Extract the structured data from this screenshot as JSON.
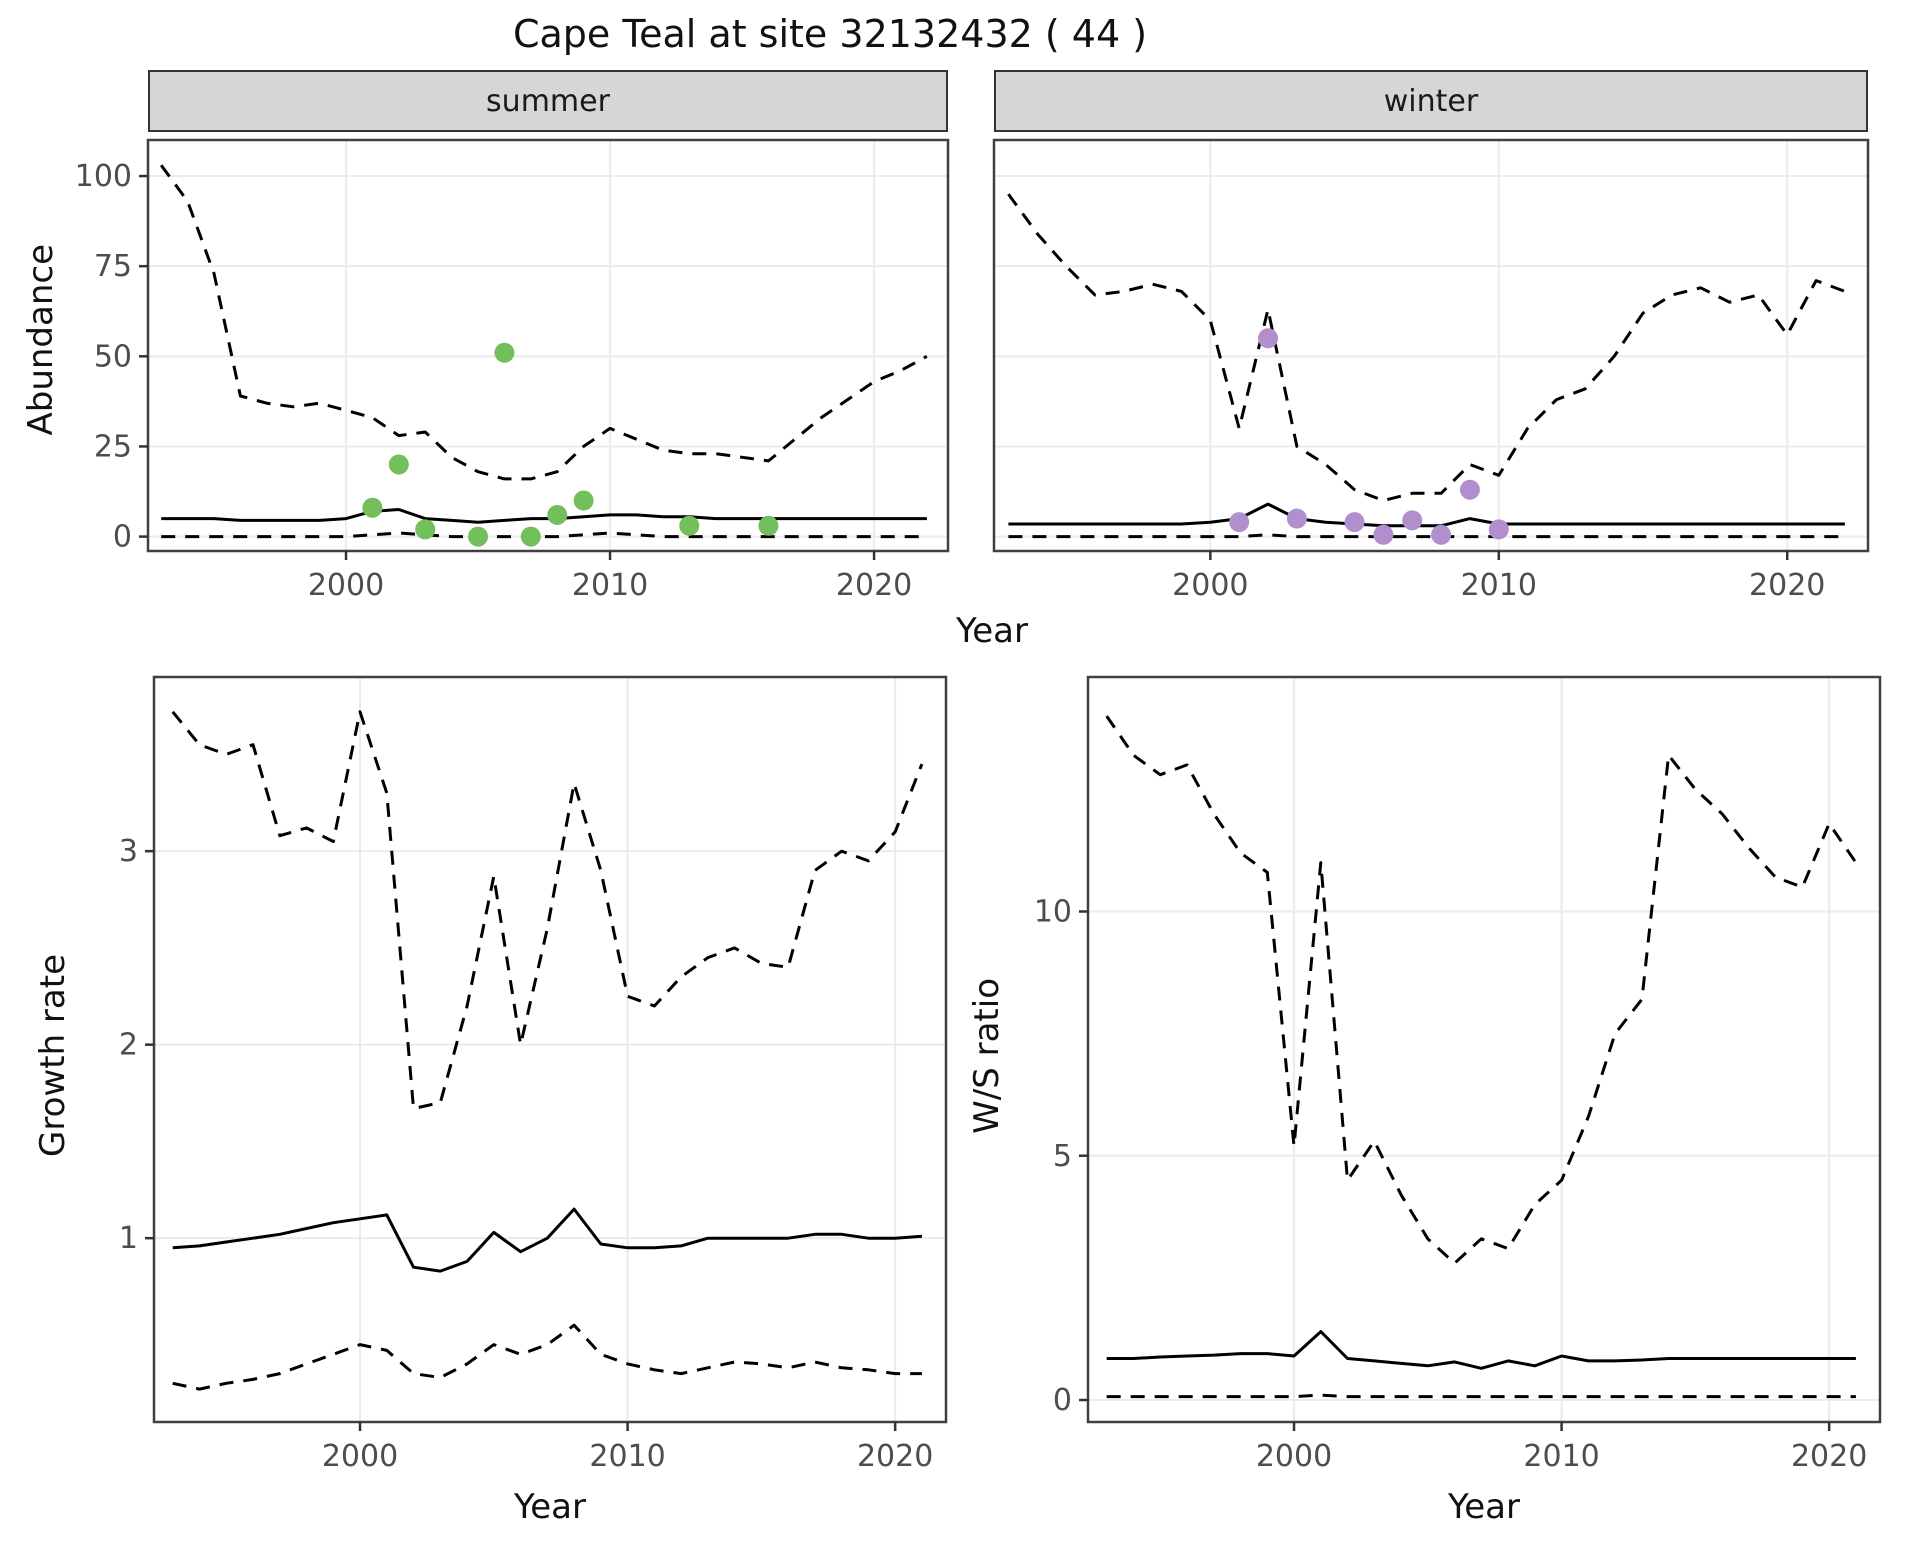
{
  "title": "Cape Teal at site 32132432 ( 44 )",
  "facets": {
    "summer": "summer",
    "winter": "winter"
  },
  "axes": {
    "abundance_label": "Abundance",
    "year_label": "Year",
    "growth_label": "Growth rate",
    "ws_label": "W/S ratio"
  },
  "colors": {
    "line": "#000000",
    "summer_points": "#72bf5b",
    "winter_points": "#b18fce",
    "strip_bg": "#d6d6d6",
    "grid": "#ebebeb",
    "panel_border": "#404040"
  },
  "chart_data": [
    {
      "type": "line",
      "name": "abundance-summer",
      "facet": "summer",
      "xlabel": "Year",
      "ylabel": "Abundance",
      "xlim": [
        1992.5,
        2022.8
      ],
      "ylim": [
        -4,
        110
      ],
      "xticks": [
        2000,
        2010,
        2020
      ],
      "yticks": [
        0,
        25,
        50,
        75,
        100
      ],
      "x": [
        1993,
        1994,
        1995,
        1996,
        1997,
        1998,
        1999,
        2000,
        2001,
        2002,
        2003,
        2004,
        2005,
        2006,
        2007,
        2008,
        2009,
        2010,
        2011,
        2012,
        2013,
        2014,
        2015,
        2016,
        2017,
        2018,
        2019,
        2020,
        2021,
        2022
      ],
      "series": [
        {
          "name": "upper-95ci",
          "style": "dashed",
          "color": "#000000",
          "y": [
            103,
            93,
            73,
            39,
            37,
            36,
            37,
            35,
            33,
            28,
            29,
            22,
            18,
            16,
            16,
            18,
            25,
            30,
            27,
            24,
            23,
            23,
            22,
            21,
            27,
            33,
            38,
            43,
            46,
            50
          ]
        },
        {
          "name": "median",
          "style": "solid",
          "color": "#000000",
          "y": [
            5,
            5,
            5,
            4.5,
            4.5,
            4.5,
            4.5,
            5,
            7,
            7.5,
            5,
            4.5,
            4,
            4.5,
            5,
            5,
            5.5,
            6,
            6,
            5.5,
            5.5,
            5,
            5,
            5,
            5,
            5,
            5,
            5,
            5,
            5
          ]
        },
        {
          "name": "lower-95ci",
          "style": "dashed",
          "color": "#000000",
          "y": [
            0,
            0,
            0,
            0,
            0,
            0,
            0,
            0,
            0.5,
            1,
            0.5,
            0,
            0,
            0,
            0,
            0,
            0.5,
            1,
            0.5,
            0,
            0,
            0,
            0,
            0,
            0,
            0,
            0,
            0,
            0,
            0
          ]
        }
      ],
      "points": {
        "name": "observed-counts-summer",
        "color": "#72bf5b",
        "x": [
          2001,
          2002,
          2003,
          2005,
          2006,
          2007,
          2008,
          2009,
          2013,
          2016
        ],
        "y": [
          8,
          20,
          2,
          0,
          51,
          0,
          6,
          10,
          3,
          3
        ]
      }
    },
    {
      "type": "line",
      "name": "abundance-winter",
      "facet": "winter",
      "xlabel": "Year",
      "ylabel": "Abundance",
      "xlim": [
        1992.5,
        2022.8
      ],
      "ylim": [
        -4,
        110
      ],
      "xticks": [
        2000,
        2010,
        2020
      ],
      "yticks": [
        0,
        25,
        50,
        75,
        100
      ],
      "x": [
        1993,
        1994,
        1995,
        1996,
        1997,
        1998,
        1999,
        2000,
        2001,
        2002,
        2003,
        2004,
        2005,
        2006,
        2007,
        2008,
        2009,
        2010,
        2011,
        2012,
        2013,
        2014,
        2015,
        2016,
        2017,
        2018,
        2019,
        2020,
        2021,
        2022
      ],
      "series": [
        {
          "name": "upper-95ci",
          "style": "dashed",
          "color": "#000000",
          "y": [
            95,
            84,
            75,
            67,
            68,
            70,
            68,
            60,
            30,
            63,
            25,
            20,
            13,
            10,
            12,
            12,
            20,
            17,
            30,
            38,
            41,
            50,
            62,
            67,
            69,
            65,
            67,
            56,
            71,
            68
          ]
        },
        {
          "name": "median",
          "style": "solid",
          "color": "#000000",
          "y": [
            3.5,
            3.5,
            3.5,
            3.5,
            3.5,
            3.5,
            3.5,
            4,
            5,
            9,
            5,
            4,
            3.5,
            3,
            3,
            3,
            5,
            3.5,
            3.5,
            3.5,
            3.5,
            3.5,
            3.5,
            3.5,
            3.5,
            3.5,
            3.5,
            3.5,
            3.5,
            3.5
          ]
        },
        {
          "name": "lower-95ci",
          "style": "dashed",
          "color": "#000000",
          "y": [
            0,
            0,
            0,
            0,
            0,
            0,
            0,
            0,
            0,
            0.5,
            0,
            0,
            0,
            0,
            0,
            0,
            0,
            0,
            0,
            0,
            0,
            0,
            0,
            0,
            0,
            0,
            0,
            0,
            0,
            0
          ]
        }
      ],
      "points": {
        "name": "observed-counts-winter",
        "color": "#b18fce",
        "x": [
          2001,
          2002,
          2003,
          2005,
          2006,
          2007,
          2008,
          2009,
          2010
        ],
        "y": [
          4,
          55,
          5,
          4,
          0.5,
          4.5,
          0.5,
          13,
          2
        ]
      }
    },
    {
      "type": "line",
      "name": "growth-rate",
      "xlabel": "Year",
      "ylabel": "Growth rate",
      "xlim": [
        1992.3,
        2021.9
      ],
      "ylim": [
        0.05,
        3.9
      ],
      "xticks": [
        2000,
        2010,
        2020
      ],
      "yticks": [
        1,
        2,
        3
      ],
      "x": [
        1993,
        1994,
        1995,
        1996,
        1997,
        1998,
        1999,
        2000,
        2001,
        2002,
        2003,
        2004,
        2005,
        2006,
        2007,
        2008,
        2009,
        2010,
        2011,
        2012,
        2013,
        2014,
        2015,
        2016,
        2017,
        2018,
        2019,
        2020,
        2021
      ],
      "series": [
        {
          "name": "upper-95ci",
          "style": "dashed",
          "color": "#000000",
          "y": [
            3.72,
            3.55,
            3.5,
            3.55,
            3.08,
            3.12,
            3.05,
            3.72,
            3.3,
            1.67,
            1.7,
            2.2,
            2.87,
            2.0,
            2.6,
            3.35,
            2.9,
            2.25,
            2.2,
            2.35,
            2.45,
            2.5,
            2.42,
            2.4,
            2.9,
            3.0,
            2.95,
            3.1,
            3.45
          ]
        },
        {
          "name": "median",
          "style": "solid",
          "color": "#000000",
          "y": [
            0.95,
            0.96,
            0.98,
            1.0,
            1.02,
            1.05,
            1.08,
            1.1,
            1.12,
            0.85,
            0.83,
            0.88,
            1.03,
            0.93,
            1.0,
            1.15,
            0.97,
            0.95,
            0.95,
            0.96,
            1.0,
            1.0,
            1.0,
            1.0,
            1.02,
            1.02,
            1.0,
            1.0,
            1.01
          ]
        },
        {
          "name": "lower-95ci",
          "style": "dashed",
          "color": "#000000",
          "y": [
            0.25,
            0.22,
            0.25,
            0.27,
            0.3,
            0.35,
            0.4,
            0.45,
            0.42,
            0.3,
            0.28,
            0.35,
            0.45,
            0.4,
            0.45,
            0.55,
            0.4,
            0.35,
            0.32,
            0.3,
            0.33,
            0.36,
            0.35,
            0.33,
            0.36,
            0.33,
            0.32,
            0.3,
            0.3
          ]
        }
      ]
    },
    {
      "type": "line",
      "name": "ws-ratio",
      "xlabel": "Year",
      "ylabel": "W/S ratio",
      "xlim": [
        1992.3,
        2021.9
      ],
      "ylim": [
        -0.45,
        14.8
      ],
      "xticks": [
        2000,
        2010,
        2020
      ],
      "yticks": [
        0,
        5,
        10
      ],
      "x": [
        1993,
        1994,
        1995,
        1996,
        1997,
        1998,
        1999,
        2000,
        2001,
        2002,
        2003,
        2004,
        2005,
        2006,
        2007,
        2008,
        2009,
        2010,
        2011,
        2012,
        2013,
        2014,
        2015,
        2016,
        2017,
        2018,
        2019,
        2020,
        2021
      ],
      "series": [
        {
          "name": "upper-95ci",
          "style": "dashed",
          "color": "#000000",
          "y": [
            14.0,
            13.2,
            12.8,
            13.0,
            12.0,
            11.2,
            10.8,
            5.2,
            11.0,
            4.5,
            5.3,
            4.2,
            3.3,
            2.8,
            3.3,
            3.1,
            4.0,
            4.5,
            5.8,
            7.5,
            8.2,
            13.2,
            12.5,
            12.0,
            11.3,
            10.7,
            10.5,
            11.8,
            11.0
          ]
        },
        {
          "name": "median",
          "style": "solid",
          "color": "#000000",
          "y": [
            0.85,
            0.85,
            0.88,
            0.9,
            0.92,
            0.95,
            0.95,
            0.9,
            1.4,
            0.85,
            0.8,
            0.75,
            0.7,
            0.78,
            0.65,
            0.8,
            0.7,
            0.9,
            0.8,
            0.8,
            0.82,
            0.85,
            0.85,
            0.85,
            0.85,
            0.85,
            0.85,
            0.85,
            0.85
          ]
        },
        {
          "name": "lower-95ci",
          "style": "dashed",
          "color": "#000000",
          "y": [
            0.07,
            0.07,
            0.07,
            0.07,
            0.07,
            0.07,
            0.07,
            0.07,
            0.1,
            0.07,
            0.07,
            0.07,
            0.07,
            0.07,
            0.07,
            0.07,
            0.07,
            0.07,
            0.07,
            0.07,
            0.07,
            0.07,
            0.07,
            0.07,
            0.07,
            0.07,
            0.07,
            0.07,
            0.07
          ]
        }
      ]
    }
  ]
}
